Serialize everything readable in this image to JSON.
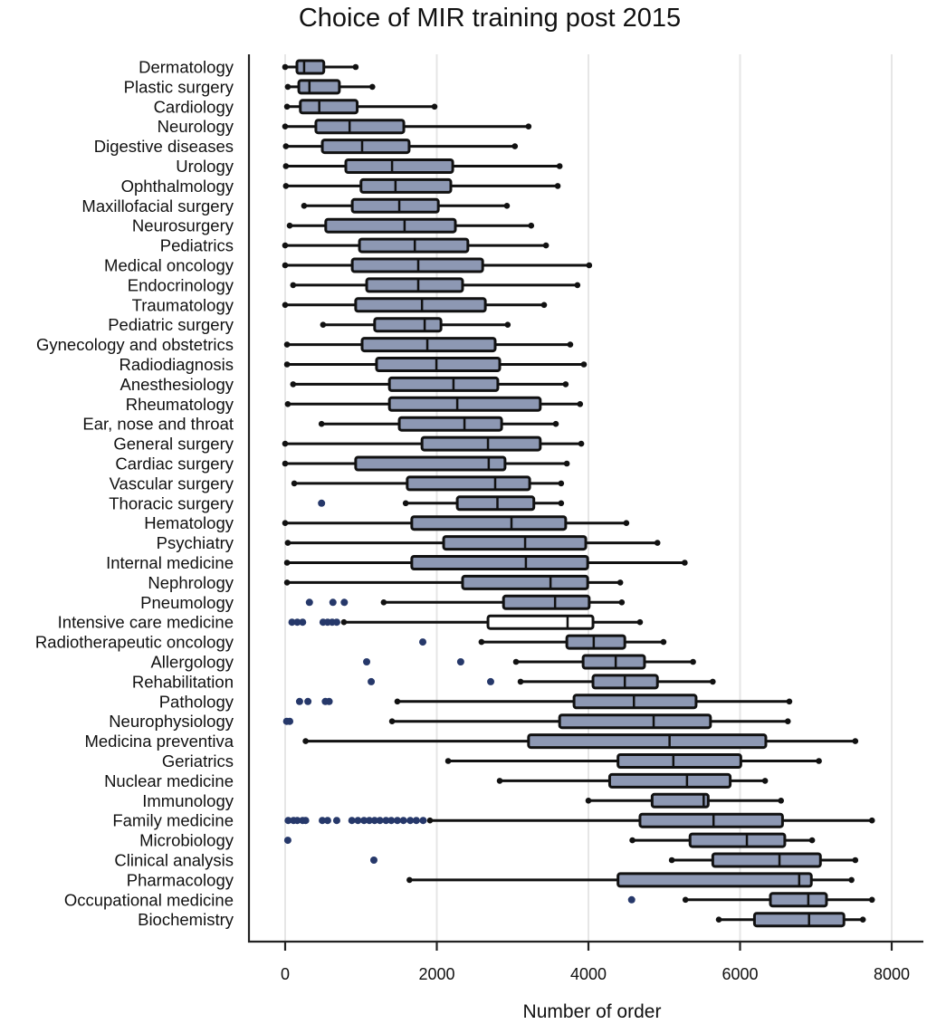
{
  "chart_data": {
    "type": "boxplot",
    "orientation": "horizontal",
    "title": "Choice of MIR training post 2015",
    "xlabel": "Number of order",
    "ylabel": "",
    "xlim": [
      0,
      8000
    ],
    "xticks": [
      0,
      2000,
      4000,
      6000,
      8000
    ],
    "xtick_labels": [
      "0",
      "2000",
      "4000",
      "6000",
      "8000"
    ],
    "grid": "vertical",
    "legend": "none",
    "box_color": "#8d98b3",
    "outlier_color": "#26386a",
    "series": [
      {
        "name": "Dermatology",
        "min": 0,
        "q1": 155,
        "median": 250,
        "q3": 510,
        "max": 930,
        "outliers": []
      },
      {
        "name": "Plastic surgery",
        "min": 35,
        "q1": 180,
        "median": 320,
        "q3": 715,
        "max": 1150,
        "outliers": []
      },
      {
        "name": "Cardiology",
        "min": 25,
        "q1": 200,
        "median": 450,
        "q3": 950,
        "max": 1970,
        "outliers": []
      },
      {
        "name": "Neurology",
        "min": 0,
        "q1": 405,
        "median": 850,
        "q3": 1565,
        "max": 3210,
        "outliers": []
      },
      {
        "name": "Digestive diseases",
        "min": 10,
        "q1": 490,
        "median": 1015,
        "q3": 1635,
        "max": 3030,
        "outliers": []
      },
      {
        "name": "Urology",
        "min": 10,
        "q1": 800,
        "median": 1410,
        "q3": 2210,
        "max": 3620,
        "outliers": []
      },
      {
        "name": "Ophthalmology",
        "min": 10,
        "q1": 1000,
        "median": 1455,
        "q3": 2185,
        "max": 3595,
        "outliers": []
      },
      {
        "name": "Maxillofacial surgery",
        "min": 250,
        "q1": 885,
        "median": 1505,
        "q3": 2020,
        "max": 2925,
        "outliers": []
      },
      {
        "name": "Neurosurgery",
        "min": 60,
        "q1": 535,
        "median": 1575,
        "q3": 2245,
        "max": 3245,
        "outliers": []
      },
      {
        "name": "Pediatrics",
        "min": 0,
        "q1": 980,
        "median": 1710,
        "q3": 2410,
        "max": 3440,
        "outliers": []
      },
      {
        "name": "Medical oncology",
        "min": 0,
        "q1": 885,
        "median": 1755,
        "q3": 2605,
        "max": 4010,
        "outliers": []
      },
      {
        "name": "Endocrinology",
        "min": 105,
        "q1": 1075,
        "median": 1755,
        "q3": 2340,
        "max": 3855,
        "outliers": []
      },
      {
        "name": "Traumatology",
        "min": 0,
        "q1": 930,
        "median": 1805,
        "q3": 2640,
        "max": 3415,
        "outliers": []
      },
      {
        "name": "Pediatric surgery",
        "min": 500,
        "q1": 1180,
        "median": 1840,
        "q3": 2055,
        "max": 2935,
        "outliers": []
      },
      {
        "name": "Gynecology and obstetrics",
        "min": 25,
        "q1": 1015,
        "median": 1875,
        "q3": 2770,
        "max": 3760,
        "outliers": []
      },
      {
        "name": "Radiodiagnosis",
        "min": 25,
        "q1": 1205,
        "median": 1995,
        "q3": 2830,
        "max": 3940,
        "outliers": []
      },
      {
        "name": "Anesthesiology",
        "min": 105,
        "q1": 1375,
        "median": 2220,
        "q3": 2805,
        "max": 3700,
        "outliers": []
      },
      {
        "name": "Rheumatology",
        "min": 35,
        "q1": 1375,
        "median": 2270,
        "q3": 3365,
        "max": 3890,
        "outliers": []
      },
      {
        "name": "Ear, nose and throat",
        "min": 480,
        "q1": 1505,
        "median": 2365,
        "q3": 2855,
        "max": 3570,
        "outliers": []
      },
      {
        "name": "General surgery",
        "min": 0,
        "q1": 1805,
        "median": 2675,
        "q3": 3365,
        "max": 3905,
        "outliers": []
      },
      {
        "name": "Cardiac surgery",
        "min": 0,
        "q1": 930,
        "median": 2685,
        "q3": 2900,
        "max": 3715,
        "outliers": []
      },
      {
        "name": "Vascular surgery",
        "min": 120,
        "q1": 1610,
        "median": 2770,
        "q3": 3225,
        "max": 3640,
        "outliers": []
      },
      {
        "name": "Thoracic surgery",
        "min": 1590,
        "q1": 2270,
        "median": 2800,
        "q3": 3280,
        "max": 3640,
        "outliers": [
          480
        ]
      },
      {
        "name": "Hematology",
        "min": 0,
        "q1": 1670,
        "median": 2985,
        "q3": 3700,
        "max": 4500,
        "outliers": []
      },
      {
        "name": "Psychiatry",
        "min": 35,
        "q1": 2090,
        "median": 3165,
        "q3": 3965,
        "max": 4910,
        "outliers": []
      },
      {
        "name": "Internal medicine",
        "min": 25,
        "q1": 1670,
        "median": 3175,
        "q3": 3990,
        "max": 5270,
        "outliers": []
      },
      {
        "name": "Nephrology",
        "min": 25,
        "q1": 2340,
        "median": 3500,
        "q3": 3990,
        "max": 4420,
        "outliers": []
      },
      {
        "name": "Pneumology",
        "min": 1300,
        "q1": 2880,
        "median": 3560,
        "q3": 4010,
        "max": 4440,
        "outliers": [
          320,
          630,
          780
        ]
      },
      {
        "name": "Intensive care medicine",
        "min": 775,
        "q1": 2675,
        "median": 3725,
        "q3": 4060,
        "max": 4680,
        "outliers": [
          90,
          160,
          230,
          500,
          560,
          620,
          680
        ],
        "fill": "white"
      },
      {
        "name": "Radiotherapeutic oncology",
        "min": 2590,
        "q1": 3715,
        "median": 4070,
        "q3": 4480,
        "max": 4990,
        "outliers": [
          1815
        ]
      },
      {
        "name": "Allergology",
        "min": 3045,
        "q1": 3930,
        "median": 4360,
        "q3": 4740,
        "max": 5380,
        "outliers": [
          1075,
          2315
        ]
      },
      {
        "name": "Rehabilitation",
        "min": 3105,
        "q1": 4060,
        "median": 4480,
        "q3": 4910,
        "max": 5640,
        "outliers": [
          1135,
          2710
        ]
      },
      {
        "name": "Pathology",
        "min": 1480,
        "q1": 3810,
        "median": 4600,
        "q3": 5420,
        "max": 6650,
        "outliers": [
          190,
          300,
          530,
          580
        ]
      },
      {
        "name": "Neurophysiology",
        "min": 1410,
        "q1": 3620,
        "median": 4860,
        "q3": 5610,
        "max": 6630,
        "outliers": [
          20,
          60
        ]
      },
      {
        "name": "Medicina preventiva",
        "min": 270,
        "q1": 3210,
        "median": 5070,
        "q3": 6340,
        "max": 7520,
        "outliers": []
      },
      {
        "name": "Geriatrics",
        "min": 2150,
        "q1": 4390,
        "median": 5120,
        "q3": 6010,
        "max": 7040,
        "outliers": []
      },
      {
        "name": "Nuclear medicine",
        "min": 2830,
        "q1": 4280,
        "median": 5300,
        "q3": 5870,
        "max": 6330,
        "outliers": []
      },
      {
        "name": "Immunology",
        "min": 4000,
        "q1": 4840,
        "median": 5520,
        "q3": 5580,
        "max": 6540,
        "outliers": []
      },
      {
        "name": "Family medicine",
        "min": 1910,
        "q1": 4680,
        "median": 5650,
        "q3": 6560,
        "max": 7740,
        "outliers": [
          40,
          110,
          160,
          230,
          270,
          490,
          560,
          680,
          880,
          960,
          1040,
          1110,
          1180,
          1250,
          1330,
          1400,
          1480,
          1560,
          1650,
          1730,
          1820
        ]
      },
      {
        "name": "Microbiology",
        "min": 4580,
        "q1": 5340,
        "median": 6090,
        "q3": 6590,
        "max": 6950,
        "outliers": [
          35
        ]
      },
      {
        "name": "Clinical analysis",
        "min": 5100,
        "q1": 5640,
        "median": 6520,
        "q3": 7060,
        "max": 7520,
        "outliers": [
          1170
        ]
      },
      {
        "name": "Pharmacology",
        "min": 1640,
        "q1": 4390,
        "median": 6780,
        "q3": 6940,
        "max": 7470,
        "outliers": []
      },
      {
        "name": "Occupational medicine",
        "min": 5280,
        "q1": 6400,
        "median": 6900,
        "q3": 7140,
        "max": 7740,
        "outliers": [
          4570
        ]
      },
      {
        "name": "Biochemistry",
        "min": 5720,
        "q1": 6190,
        "median": 6910,
        "q3": 7370,
        "max": 7620,
        "outliers": []
      }
    ]
  }
}
